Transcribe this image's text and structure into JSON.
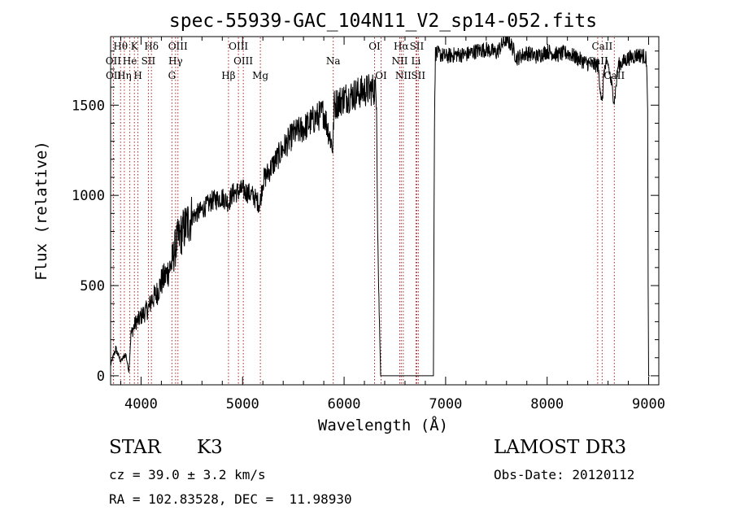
{
  "chart_data": {
    "type": "line",
    "title": "spec-55939-GAC_104N11_V2_sp14-052.fits",
    "xlabel": "Wavelength (Å)",
    "ylabel": "Flux (relative)",
    "xlim": [
      3700,
      9100
    ],
    "ylim": [
      -50,
      1880
    ],
    "xticks": [
      4000,
      5000,
      6000,
      7000,
      8000,
      9000
    ],
    "yticks": [
      0,
      500,
      1000,
      1500
    ],
    "grid": false,
    "series": [
      {
        "name": "flux",
        "x": [
          3700,
          3750,
          3800,
          3850,
          3880,
          3900,
          3950,
          3980,
          4000,
          4050,
          4080,
          4100,
          4150,
          4200,
          4250,
          4300,
          4350,
          4400,
          4450,
          4500,
          4600,
          4700,
          4800,
          4861,
          4900,
          5000,
          5100,
          5170,
          5200,
          5300,
          5400,
          5500,
          5600,
          5700,
          5800,
          5890,
          5900,
          6000,
          6100,
          6200,
          6300,
          6320,
          6330,
          6340,
          6360,
          6400,
          6500,
          6600,
          6700,
          6800,
          6850,
          6880,
          6890,
          6900,
          7000,
          7100,
          7200,
          7300,
          7400,
          7500,
          7600,
          7650,
          7700,
          7800,
          7900,
          8000,
          8100,
          8200,
          8300,
          8400,
          8500,
          8542,
          8560,
          8600,
          8662,
          8700,
          8800,
          8900,
          8960,
          8980,
          8990,
          8995,
          9000,
          9010
        ],
        "y": [
          60,
          150,
          80,
          120,
          20,
          230,
          300,
          310,
          330,
          360,
          380,
          420,
          450,
          520,
          560,
          620,
          740,
          790,
          840,
          880,
          920,
          970,
          990,
          960,
          1010,
          1030,
          1000,
          950,
          1080,
          1170,
          1260,
          1340,
          1370,
          1420,
          1460,
          1260,
          1500,
          1540,
          1560,
          1580,
          1590,
          1560,
          840,
          500,
          0,
          0,
          0,
          0,
          0,
          0,
          0,
          0,
          1400,
          1790,
          1770,
          1780,
          1780,
          1800,
          1810,
          1790,
          1870,
          1830,
          1760,
          1790,
          1770,
          1800,
          1780,
          1790,
          1760,
          1730,
          1720,
          1500,
          1700,
          1730,
          1520,
          1720,
          1760,
          1780,
          1770,
          1750,
          1450,
          500,
          0,
          0
        ]
      }
    ],
    "lines": [
      {
        "label": "Hθ",
        "wave": 3798,
        "row": 1
      },
      {
        "label": "OII",
        "wave": 3727,
        "row": 2
      },
      {
        "label": "OII",
        "wave": 3729,
        "row": 3
      },
      {
        "label": "Hη",
        "wave": 3835,
        "row": 3
      },
      {
        "label": "K",
        "wave": 3934,
        "row": 1
      },
      {
        "label": "H",
        "wave": 3969,
        "row": 3
      },
      {
        "label": "He",
        "wave": 3889,
        "row": 2
      },
      {
        "label": "SII",
        "wave": 4072,
        "row": 2
      },
      {
        "label": "Hδ",
        "wave": 4102,
        "row": 1
      },
      {
        "label": "OIII",
        "wave": 4363,
        "row": 1
      },
      {
        "label": "Hγ",
        "wave": 4340,
        "row": 2
      },
      {
        "label": "G",
        "wave": 4304,
        "row": 3
      },
      {
        "label": "Hβ",
        "wave": 4861,
        "row": 3
      },
      {
        "label": "OIII",
        "wave": 4959,
        "row": 1
      },
      {
        "label": "OIII",
        "wave": 5007,
        "row": 2
      },
      {
        "label": "Mg",
        "wave": 5175,
        "row": 3
      },
      {
        "label": "Na",
        "wave": 5893,
        "row": 2
      },
      {
        "label": "OI",
        "wave": 6300,
        "row": 1
      },
      {
        "label": "OI",
        "wave": 6364,
        "row": 3
      },
      {
        "label": "Hα",
        "wave": 6563,
        "row": 1
      },
      {
        "label": "NII",
        "wave": 6548,
        "row": 2
      },
      {
        "label": "NII",
        "wave": 6583,
        "row": 3
      },
      {
        "label": "SII",
        "wave": 6716,
        "row": 1
      },
      {
        "label": "Li",
        "wave": 6708,
        "row": 2
      },
      {
        "label": "SII",
        "wave": 6731,
        "row": 3
      },
      {
        "label": "CaII",
        "wave": 8498,
        "row": 2
      },
      {
        "label": "CaII",
        "wave": 8542,
        "row": 1
      },
      {
        "label": "CaII",
        "wave": 8662,
        "row": 3
      }
    ]
  },
  "info": {
    "class_text": "STAR",
    "subclass_text": "K3",
    "survey": "LAMOST DR3",
    "redshift": "cz = 39.0 ± 3.2 km/s",
    "obs_date": "Obs-Date: 20120112",
    "coords": "RA = 102.83528, DEC =  11.98930"
  }
}
